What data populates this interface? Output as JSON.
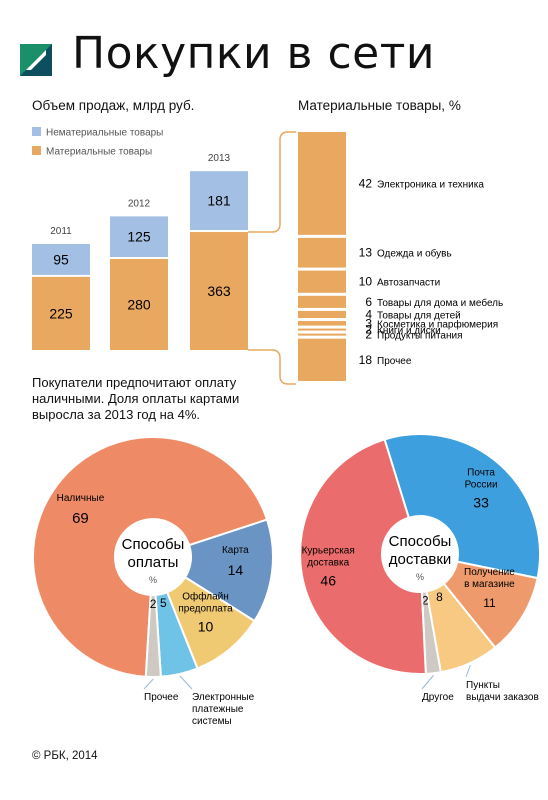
{
  "header": {
    "title": "Покупки в сети"
  },
  "sales": {
    "title": "Объем продаж, млрд руб.",
    "legend": [
      {
        "label": "Нематериальные товары",
        "color": "#a3bfe3"
      },
      {
        "label": "Материальные товары",
        "color": "#e8a860"
      }
    ]
  },
  "goods": {
    "title": "Материальные товары, %"
  },
  "note": {
    "lines": [
      "Покупатели предпочитают оплату",
      "наличными. Доля оплаты картами",
      "выросла за 2013 год на 4%."
    ]
  },
  "footer": {
    "copyright": "© РБК, 2014"
  },
  "chart_data": [
    {
      "type": "bar",
      "stacked": true,
      "title": "Объем продаж, млрд руб.",
      "categories": [
        "2011",
        "2012",
        "2013"
      ],
      "series": [
        {
          "name": "Материальные товары",
          "values": [
            225,
            280,
            363
          ],
          "color": "#e8a860"
        },
        {
          "name": "Нематериальные товары",
          "values": [
            95,
            125,
            181
          ],
          "color": "#a3bfe3"
        }
      ],
      "legend_position": "top-left",
      "grid": false
    },
    {
      "type": "bar",
      "title": "Материальные товары, %",
      "unit": "%",
      "categories": [
        "Электроника и техника",
        "Одежда и обувь",
        "Автозапчасти",
        "Товары для дома и мебель",
        "Товары для детей",
        "Косметика и парфюмерия",
        "Книги и диски",
        "Продукты питания",
        "Прочее"
      ],
      "values": [
        42,
        13,
        10,
        6,
        4,
        3,
        2,
        2,
        18
      ],
      "color": "#e8a860"
    },
    {
      "type": "pie",
      "title": "Способы оплаты",
      "unit": "%",
      "labels": [
        "Наличные",
        "Карта",
        "Оффлайн предоплата",
        "Электронные платежные системы",
        "Прочее"
      ],
      "values": [
        69,
        14,
        10,
        5,
        2
      ],
      "colors": [
        "#ee8a66",
        "#6a94c4",
        "#f0ca72",
        "#6ec3e6",
        "#cfc9c3"
      ],
      "label_lines": [
        [
          "Наличные"
        ],
        [
          "Карта"
        ],
        [
          "Оффлайн",
          "предоплата"
        ],
        [
          "Электронные",
          "платежные",
          "системы"
        ],
        [
          "Прочее"
        ]
      ]
    },
    {
      "type": "pie",
      "title": "Способы доставки",
      "unit": "%",
      "labels": [
        "Почта России",
        "Получение в магазине",
        "Пункты выдачи заказов",
        "Другое",
        "Курьерская доставка"
      ],
      "values": [
        33,
        11,
        8,
        2,
        46
      ],
      "colors": [
        "#3e9fde",
        "#ee9a6c",
        "#f7c982",
        "#cfc9c3",
        "#eb6c6c"
      ],
      "label_lines": [
        [
          "Почта",
          "России"
        ],
        [
          "Получение",
          "в магазине"
        ],
        [
          "Пункты",
          "выдачи заказов"
        ],
        [
          "Другое"
        ],
        [
          "Курьерская",
          "доставка"
        ]
      ]
    }
  ]
}
